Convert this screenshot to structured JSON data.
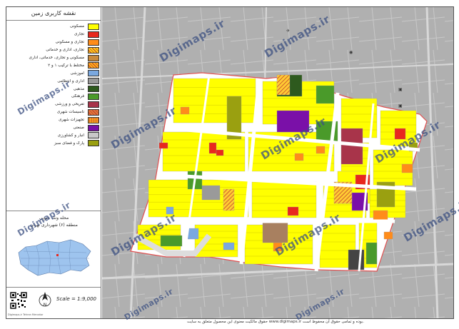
{
  "legend": {
    "title": "نقشه کاربری زمین",
    "items": [
      {
        "label": "مسکونی",
        "color": "#ffff00"
      },
      {
        "label": "تجاری",
        "color": "#e8281e"
      },
      {
        "label": "تجاری و مسکونی",
        "color": "#ff8c1a"
      },
      {
        "label": "تجاری، اداری و خدماتی",
        "color": "#ffd11a",
        "pattern": "hatch-orange"
      },
      {
        "label": "مسکونی و تجاری، خدماتی، اداری",
        "color": "#c98a3c"
      },
      {
        "label": "مختلط با ترکیب ۱ و ۲",
        "color": "#ffb41a",
        "pattern": "hatch-red"
      },
      {
        "label": "آموزشی",
        "color": "#7aa8e0"
      },
      {
        "label": "اداری و انتظامی",
        "color": "#9a9a9a"
      },
      {
        "label": "مذهبی",
        "color": "#2e5a1e"
      },
      {
        "label": "فرهنگی",
        "color": "#4a9a2a"
      },
      {
        "label": "تفریحی و ورزشی",
        "color": "#a8344a"
      },
      {
        "label": "تأسیسات شهری",
        "color": "#e07a3a",
        "pattern": "hatch-red"
      },
      {
        "label": "تجهیزات شهری",
        "color": "#ffb41a",
        "pattern": "dots"
      },
      {
        "label": "صنعتی",
        "color": "#7a10a8"
      },
      {
        "label": "انبار و کشاورزی",
        "color": "#c8c8c8"
      },
      {
        "label": "پارک و فضای سبز",
        "color": "#9aa010"
      }
    ]
  },
  "location": {
    "title": "محله ونک جنوبی",
    "subtitle": "منطقه (۶) شهرداری تهران"
  },
  "scale_text": "Scale = 1:9,000",
  "credit_text": "Digimaps.ir  Tehran Mercator",
  "watermark": "Digimaps.ir",
  "footer_text": "حقوق مالکیت معنوی این محصول متعلق به سایت www.digimaps.ir بوده و تمامی حقوق آن محفوظ است.",
  "colors": {
    "residential": "#ffff00",
    "commercial": "#e8281e",
    "mixed": "#ff8c1a",
    "green": "#4a9a2a",
    "park": "#9aa010",
    "religious": "#2e5a1e",
    "education": "#7aa8e0",
    "admin": "#9a9a9a",
    "industrial": "#7a10a8",
    "recreation": "#a8344a",
    "boundary": "#e05050"
  }
}
